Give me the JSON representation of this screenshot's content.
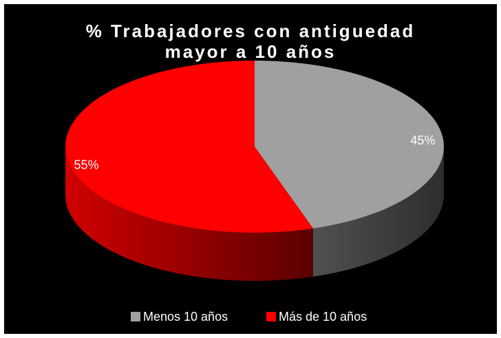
{
  "chart_data": {
    "type": "pie",
    "title": "% Trabajadores con antiguedad mayor a 10 años",
    "categories": [
      "Menos 10 años",
      "Más de 10 años"
    ],
    "values": [
      45,
      55
    ],
    "value_labels": [
      "45%",
      "55%"
    ],
    "colors": [
      "#a0a0a0",
      "#ff0000"
    ],
    "legend": "bottom"
  }
}
